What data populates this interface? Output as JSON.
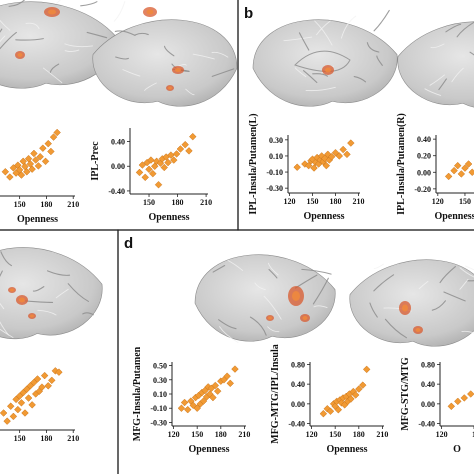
{
  "panels": [
    {
      "id": "a",
      "label": ""
    },
    {
      "id": "b",
      "label": "b"
    },
    {
      "id": "c",
      "label": ""
    },
    {
      "id": "d",
      "label": "d"
    }
  ],
  "colors": {
    "marker": "#f19a34",
    "activation": "#d85a2e",
    "brain": "#cfcfcf"
  },
  "chart_data": [
    {
      "type": "scatter",
      "panel": "a",
      "ylabel": "",
      "xlabel": "Openness",
      "xticks": [
        "150",
        "180",
        "210"
      ],
      "yticks": [],
      "xlim": [
        128,
        212
      ],
      "ylim": [
        -0.35,
        0.75
      ],
      "x": [
        134,
        139,
        143,
        146,
        148,
        150,
        152,
        154,
        156,
        158,
        160,
        162,
        164,
        166,
        168,
        171,
        173,
        176,
        179,
        182,
        185,
        188,
        192
      ],
      "y": [
        0.02,
        -0.06,
        0.08,
        0.0,
        0.12,
        0.05,
        -0.03,
        0.18,
        0.1,
        0.02,
        0.22,
        0.14,
        0.06,
        0.3,
        0.2,
        0.11,
        0.25,
        0.38,
        0.18,
        0.45,
        0.33,
        0.55,
        0.62
      ]
    },
    {
      "type": "scatter",
      "panel": "a",
      "ylabel": "IPL-Prec",
      "xlabel": "Openness",
      "xticks": [
        "150",
        "180",
        "210"
      ],
      "yticks": [
        "0.40",
        "0.00",
        "-0.40"
      ],
      "xlim": [
        130,
        212
      ],
      "ylim": [
        -0.45,
        0.62
      ],
      "x": [
        140,
        143,
        146,
        148,
        150,
        152,
        154,
        156,
        158,
        160,
        162,
        164,
        166,
        168,
        170,
        173,
        176,
        179,
        183,
        188,
        192,
        196
      ],
      "y": [
        -0.1,
        0.02,
        -0.18,
        0.06,
        -0.05,
        0.1,
        -0.12,
        0.0,
        0.08,
        -0.3,
        0.05,
        0.12,
        -0.02,
        0.15,
        0.06,
        0.18,
        0.1,
        0.2,
        0.28,
        0.35,
        0.25,
        0.48
      ]
    },
    {
      "type": "scatter",
      "panel": "b",
      "ylabel": "IPL-Insula/Putamen(L)",
      "xlabel": "Openness",
      "xticks": [
        "120",
        "150",
        "180",
        "210"
      ],
      "yticks": [
        "0.30",
        "0.10",
        "-0.10",
        "-0.30"
      ],
      "xlim": [
        118,
        212
      ],
      "ylim": [
        -0.36,
        0.36
      ],
      "x": [
        130,
        140,
        145,
        148,
        150,
        152,
        154,
        156,
        158,
        160,
        162,
        164,
        166,
        168,
        170,
        172,
        175,
        180,
        185,
        190,
        195,
        200
      ],
      "y": [
        -0.04,
        0.0,
        -0.02,
        0.04,
        0.06,
        -0.05,
        0.02,
        0.08,
        0.0,
        0.05,
        0.1,
        0.03,
        0.07,
        -0.02,
        0.12,
        0.05,
        0.09,
        0.14,
        0.1,
        0.18,
        0.12,
        0.26
      ]
    },
    {
      "type": "scatter",
      "panel": "b",
      "ylabel": "IPL-Insula/Putamen(R)",
      "xlabel": "Openness",
      "xticks": [
        "120",
        "150"
      ],
      "yticks": [
        "0.40",
        "0.20",
        "0.00",
        "-0.20"
      ],
      "xlim": [
        118,
        160
      ],
      "ylim": [
        -0.25,
        0.45
      ],
      "x": [
        132,
        138,
        142,
        146,
        150,
        154,
        158
      ],
      "y": [
        -0.05,
        0.02,
        0.08,
        -0.02,
        0.05,
        0.1,
        0.0
      ]
    },
    {
      "type": "scatter",
      "panel": "c",
      "ylabel": "",
      "xlabel": "",
      "xticks": [
        "150",
        "180",
        "210"
      ],
      "yticks": [],
      "xlim": [
        128,
        212
      ],
      "ylim": [
        -0.45,
        0.55
      ],
      "x": [
        132,
        136,
        140,
        143,
        146,
        148,
        150,
        152,
        154,
        156,
        158,
        160,
        162,
        164,
        166,
        168,
        170,
        172,
        175,
        178,
        182,
        186,
        190,
        194
      ],
      "y": [
        -0.2,
        -0.32,
        -0.1,
        -0.25,
        0.0,
        -0.15,
        0.05,
        -0.05,
        0.1,
        -0.2,
        0.15,
        0.02,
        0.2,
        -0.08,
        0.25,
        0.08,
        0.3,
        0.12,
        0.18,
        0.35,
        0.2,
        0.28,
        0.42,
        0.4
      ]
    },
    {
      "type": "scatter",
      "panel": "d",
      "ylabel": "MFG-Insula/Putamen",
      "xlabel": "Openness",
      "xticks": [
        "120",
        "150",
        "180",
        "210"
      ],
      "yticks": [
        "0.50",
        "0.30",
        "0.10",
        "-0.10",
        "-0.30"
      ],
      "xlim": [
        118,
        212
      ],
      "ylim": [
        -0.35,
        0.55
      ],
      "x": [
        130,
        134,
        138,
        142,
        145,
        148,
        150,
        152,
        154,
        156,
        158,
        160,
        162,
        164,
        166,
        168,
        170,
        173,
        176,
        180,
        184,
        188,
        192,
        198
      ],
      "y": [
        -0.1,
        -0.02,
        -0.12,
        0.0,
        -0.06,
        0.05,
        -0.1,
        0.08,
        -0.04,
        0.12,
        0.0,
        0.15,
        0.06,
        0.2,
        0.1,
        0.18,
        0.05,
        0.22,
        0.14,
        0.28,
        0.3,
        0.35,
        0.25,
        0.45
      ]
    },
    {
      "type": "scatter",
      "panel": "d",
      "ylabel": "MFG-MTG/IPL/Insula",
      "xlabel": "Openness",
      "xticks": [
        "120",
        "150",
        "180",
        "210"
      ],
      "yticks": [
        "0.80",
        "0.40",
        "0.00",
        "-0.40"
      ],
      "xlim": [
        118,
        212
      ],
      "ylim": [
        -0.45,
        0.85
      ],
      "x": [
        135,
        140,
        144,
        148,
        150,
        152,
        154,
        156,
        158,
        160,
        162,
        164,
        166,
        168,
        170,
        173,
        176,
        180,
        185,
        190
      ],
      "y": [
        -0.2,
        -0.1,
        -0.15,
        0.0,
        -0.05,
        0.05,
        -0.12,
        0.08,
        0.02,
        0.12,
        -0.02,
        0.15,
        0.05,
        0.2,
        0.1,
        0.25,
        0.18,
        0.3,
        0.38,
        0.7
      ]
    },
    {
      "type": "scatter",
      "panel": "d",
      "ylabel": "MFG-STG/MTG",
      "xlabel": "O",
      "xticks": [
        "120",
        "1"
      ],
      "yticks": [
        "0.80",
        "0.40",
        "0.00",
        "-0.40"
      ],
      "xlim": [
        118,
        160
      ],
      "ylim": [
        -0.45,
        0.85
      ],
      "x": [
        132,
        140,
        148,
        156
      ],
      "y": [
        -0.05,
        0.05,
        0.12,
        0.2
      ]
    }
  ]
}
